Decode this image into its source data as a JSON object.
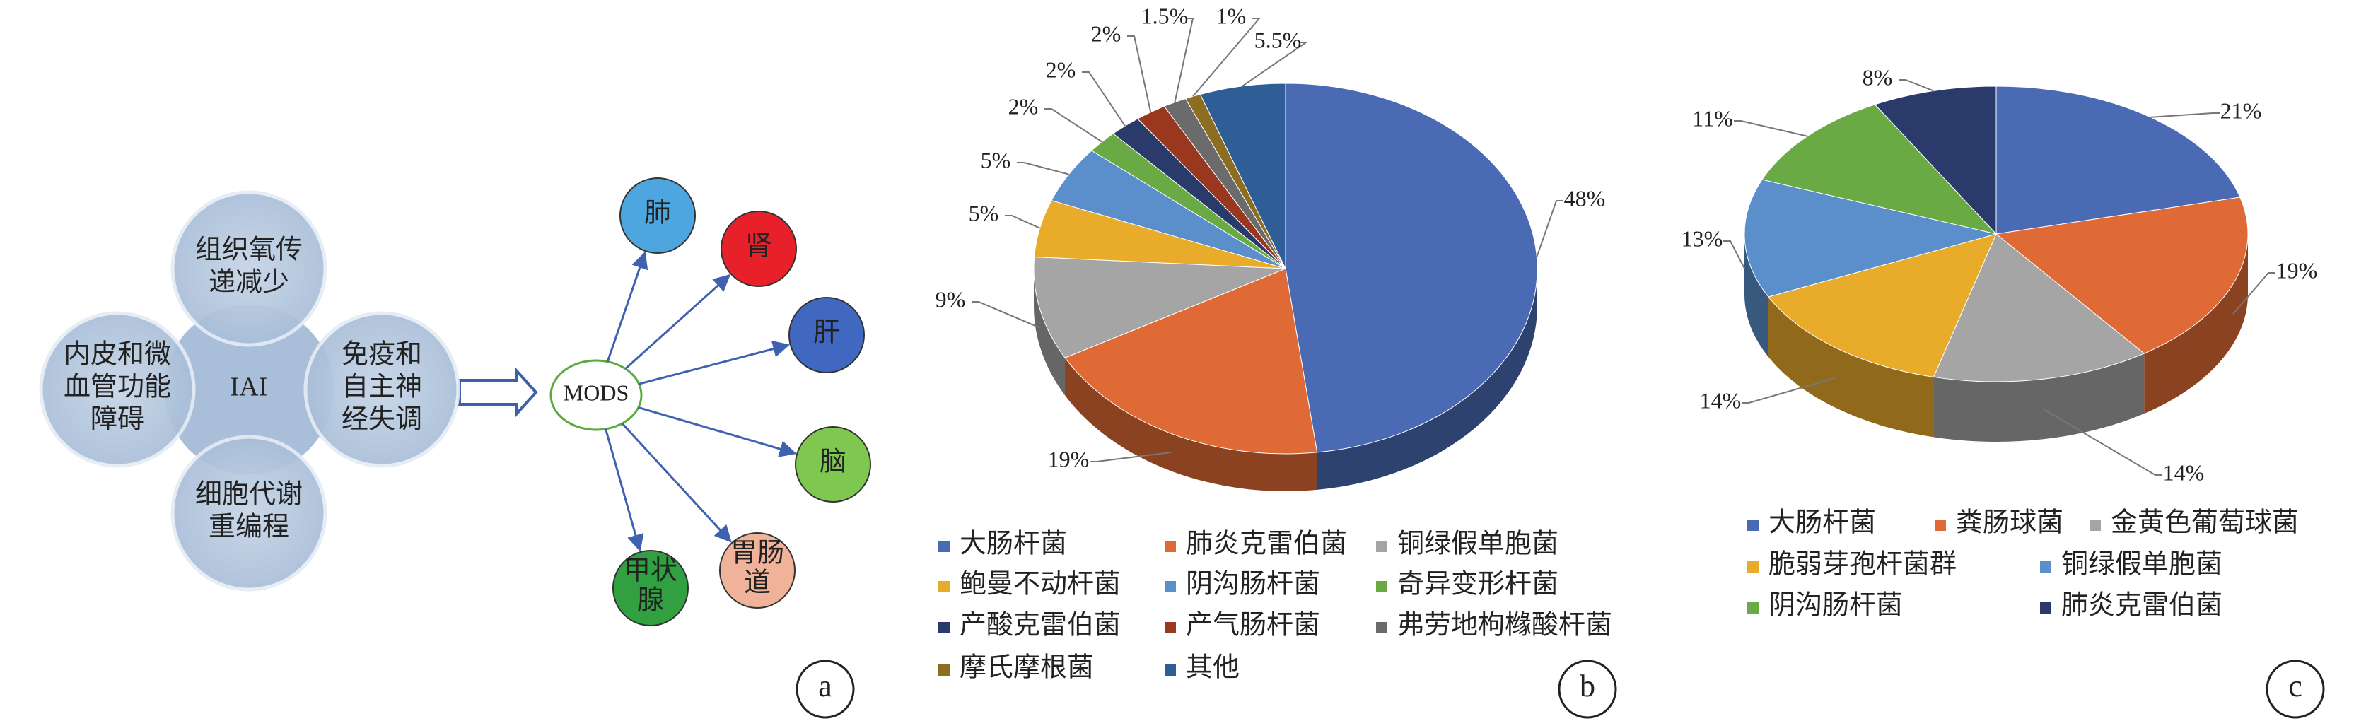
{
  "diagram": {
    "center": "IAI",
    "factors": [
      [
        "组织氧传",
        "递减少"
      ],
      [
        "内皮和微",
        "血管功能",
        "障碍"
      ],
      [
        "免疫和",
        "自主神",
        "经失调"
      ],
      [
        "细胞代谢",
        "重编程"
      ]
    ],
    "mods": "MODS",
    "organs": [
      {
        "label": [
          "肺"
        ],
        "color": "#4ea6e0"
      },
      {
        "label": [
          "肾"
        ],
        "color": "#e8202a"
      },
      {
        "label": [
          "肝"
        ],
        "color": "#4068c0"
      },
      {
        "label": [
          "脑"
        ],
        "color": "#7ec850"
      },
      {
        "label": [
          "胃肠",
          "道"
        ],
        "color": "#f0b39a"
      },
      {
        "label": [
          "甲状",
          "腺"
        ],
        "color": "#30a040"
      }
    ]
  },
  "panel_labels": [
    "a",
    "b",
    "c"
  ],
  "chart_data": [
    {
      "type": "pie",
      "categories": [
        "大肠杆菌",
        "肺炎克雷伯菌",
        "铜绿假单胞菌",
        "鲍曼不动杆菌",
        "阴沟肠杆菌",
        "奇异变形杆菌",
        "产酸克雷伯菌",
        "产气肠杆菌",
        "弗劳地枸橼酸杆菌",
        "摩氏摩根菌",
        "其他"
      ],
      "values": [
        48,
        19,
        9,
        5,
        5,
        2,
        2,
        2,
        1.5,
        1,
        5.5
      ],
      "value_labels": [
        "48%",
        "19%",
        "9%",
        "5%",
        "5%",
        "2%",
        "2%",
        "2%",
        "1.5%",
        "1%",
        "5.5%"
      ],
      "colors": [
        "#4a6ab3",
        "#e06a35",
        "#a5a5a5",
        "#e8ab2a",
        "#5b8fcc",
        "#6aaa45",
        "#2a3b6b",
        "#99381f",
        "#6b6b6b",
        "#8c6e22",
        "#2f5d96"
      ]
    },
    {
      "type": "pie",
      "categories": [
        "大肠杆菌",
        "粪肠球菌",
        "金黄色葡萄球菌",
        "脆弱芽孢杆菌群",
        "铜绿假单胞菌",
        "阴沟肠杆菌",
        "肺炎克雷伯菌"
      ],
      "values": [
        21,
        19,
        14,
        14,
        13,
        11,
        8
      ],
      "value_labels": [
        "21%",
        "19%",
        "14%",
        "14%",
        "13%",
        "11%",
        "8%"
      ],
      "colors": [
        "#4a6ab3",
        "#e06a35",
        "#a5a5a5",
        "#e8ab2a",
        "#5b8fcc",
        "#6aaa45",
        "#2a3b6b"
      ]
    }
  ]
}
